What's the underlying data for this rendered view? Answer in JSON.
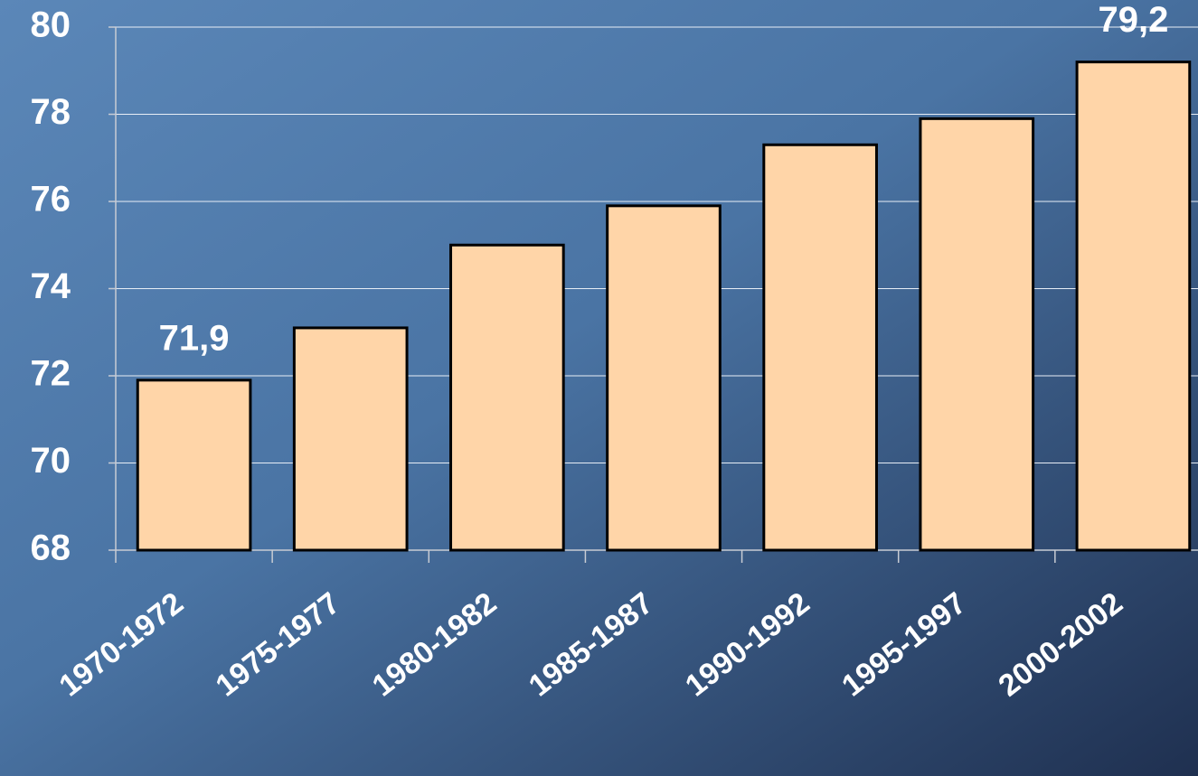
{
  "chart_data": {
    "type": "bar",
    "categories": [
      "1970-1972",
      "1975-1977",
      "1980-1982",
      "1985-1987",
      "1990-1992",
      "1995-1997",
      "2000-2002"
    ],
    "values": [
      71.9,
      73.1,
      75.0,
      75.9,
      77.3,
      77.9,
      79.2
    ],
    "value_labels": [
      "71,9",
      null,
      null,
      null,
      null,
      null,
      "79,2"
    ],
    "color": "#ffd5a8",
    "ylim": [
      68,
      80
    ],
    "yticks": [
      68,
      70,
      72,
      74,
      76,
      78,
      80
    ],
    "grid": true
  }
}
